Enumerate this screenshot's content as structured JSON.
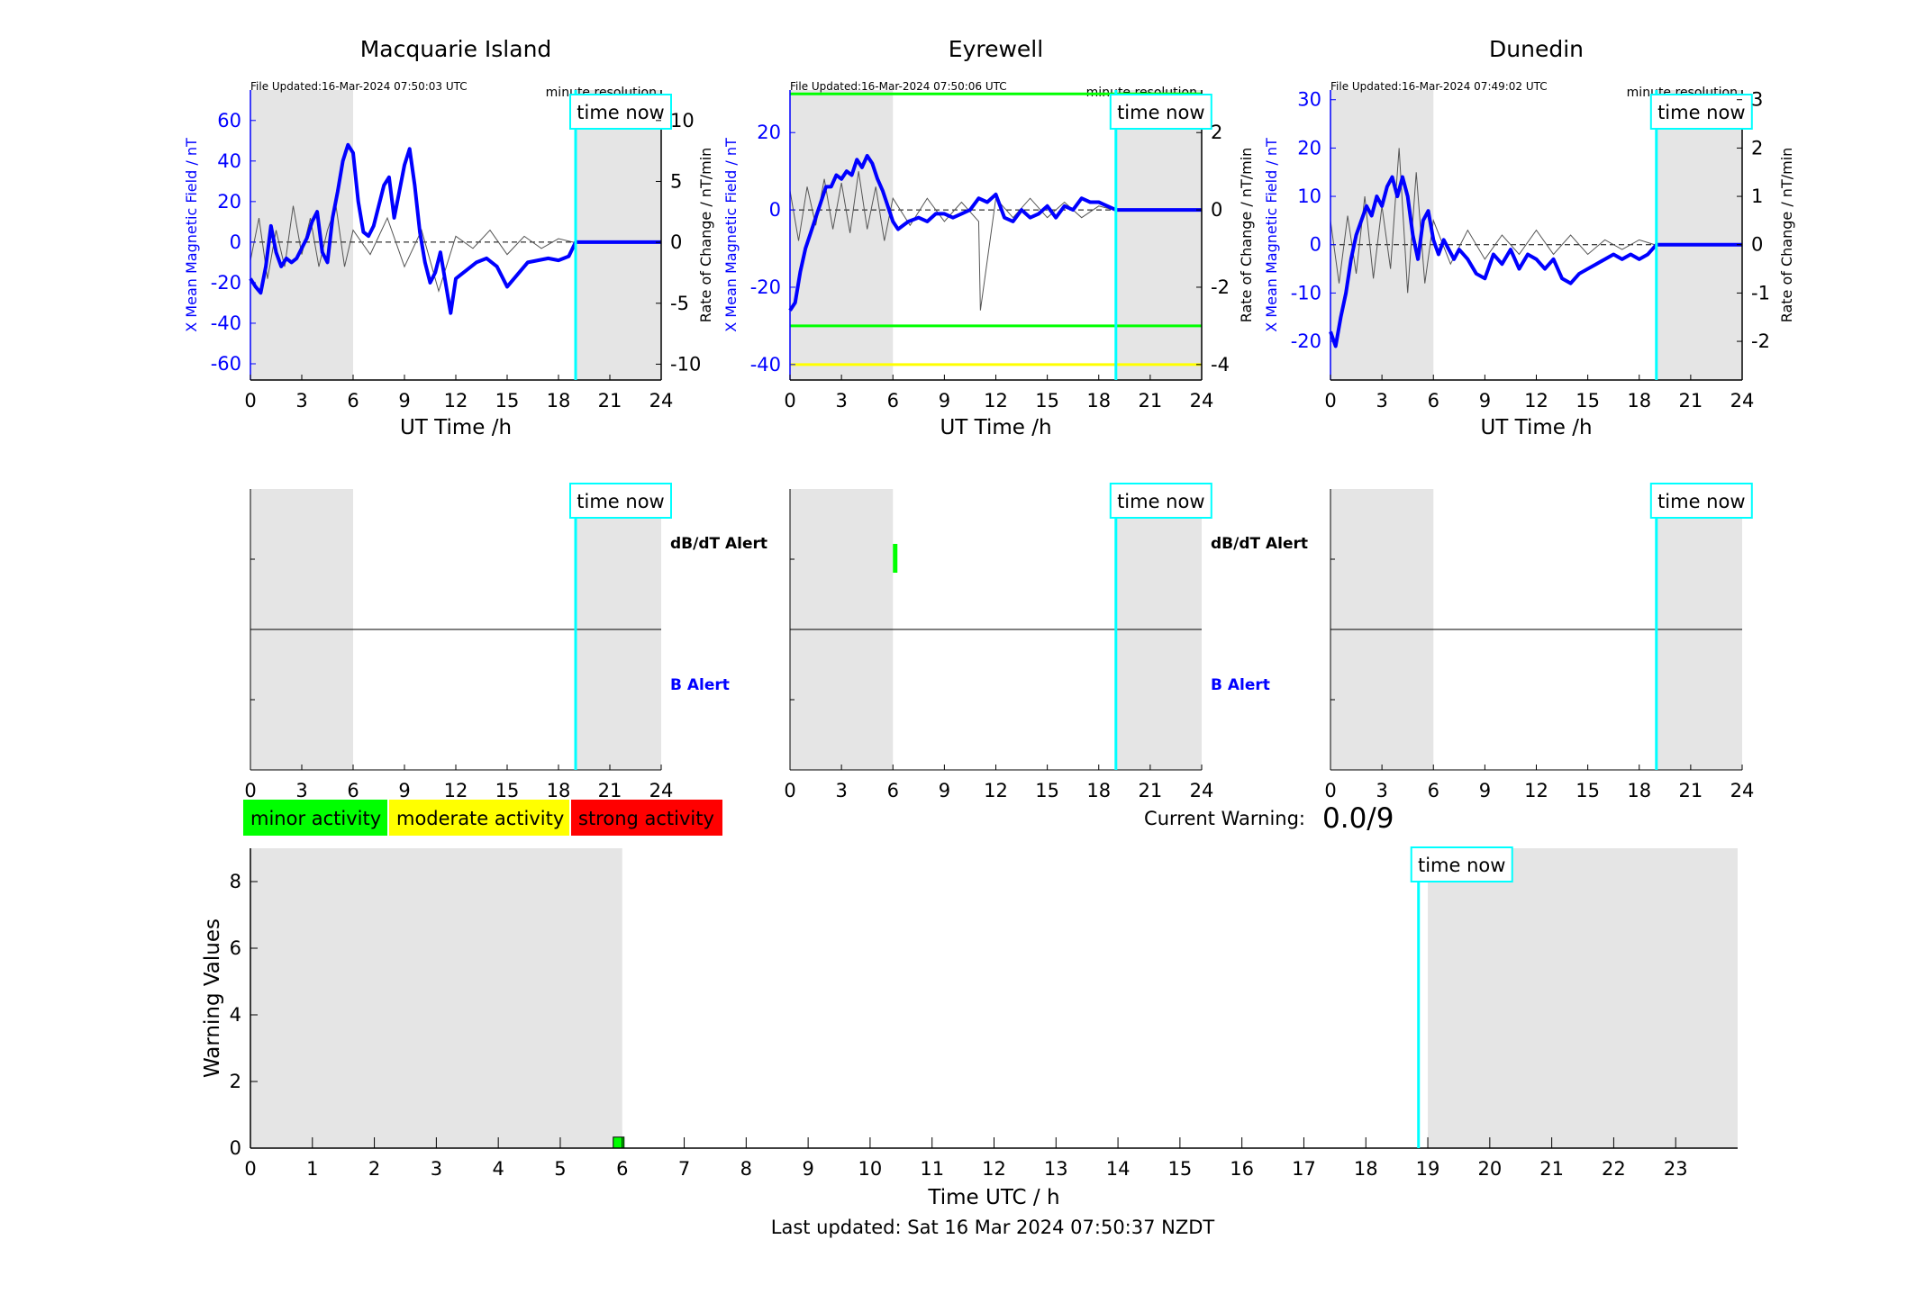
{
  "page": {
    "last_updated": "Last updated: Sat 16 Mar 2024 07:50:37 NZDT",
    "current_warning_label": "Current Warning:",
    "current_warning_value": "0.0/9",
    "legend": [
      {
        "label": "minor activity",
        "color": "#00ff00"
      },
      {
        "label": "moderate activity",
        "color": "#ffff00"
      },
      {
        "label": "strong activity",
        "color": "#ff0000"
      }
    ],
    "colors": {
      "field": "#0000ff",
      "now_line": "#00ffff",
      "night": "#e5e5e5",
      "dbdt": "#000000"
    }
  },
  "chart_data": [
    {
      "type": "line",
      "station": "Macquarie Island",
      "title": "Macquarie Island",
      "file_updated": "File Updated:16-Mar-2024 07:50:03 UTC",
      "resolution": "minute resolution",
      "time_now_label": "time now",
      "time_now_h": 19.0,
      "night_bands": [
        [
          0,
          6
        ],
        [
          19,
          24
        ]
      ],
      "xlabel": "UT Time /h",
      "xlim": [
        0,
        24
      ],
      "xticks": [
        "0",
        "3",
        "6",
        "9",
        "12",
        "15",
        "18",
        "21",
        "24"
      ],
      "ylabel_left": "X Mean Magnetic Field / nT",
      "ylim_left": [
        -68,
        75
      ],
      "yticks_left": [
        "-60",
        "-40",
        "-20",
        "0",
        "20",
        "40",
        "60"
      ],
      "ylabel_right": "Rate of Change / nT/min",
      "ylim_right": [
        -11.3,
        12.5
      ],
      "yticks_right": [
        "-10",
        "-5",
        "0",
        "5",
        "10"
      ],
      "series": [
        {
          "values_x": [
            0,
            0.3,
            0.6,
            0.9,
            1.2,
            1.5,
            1.8,
            2.1,
            2.4,
            2.7,
            3.0,
            3.3,
            3.6,
            3.9,
            4.2,
            4.5,
            4.8,
            5.1,
            5.4,
            5.7,
            6.0,
            6.3,
            6.6,
            6.9,
            7.2,
            7.5,
            7.8,
            8.1,
            8.4,
            8.7,
            9.0,
            9.3,
            9.6,
            9.9,
            10.2,
            10.5,
            10.8,
            11.1,
            11.4,
            11.7,
            12.0,
            12.6,
            13.2,
            13.8,
            14.4,
            15.0,
            15.6,
            16.2,
            16.8,
            17.4,
            18.0,
            18.6,
            19.0,
            24.0
          ],
          "values_y": [
            -18,
            -22,
            -25,
            -12,
            8,
            -5,
            -12,
            -8,
            -10,
            -8,
            -3,
            2,
            10,
            15,
            -5,
            -10,
            12,
            25,
            40,
            48,
            44,
            20,
            5,
            3,
            8,
            18,
            28,
            32,
            12,
            25,
            38,
            46,
            28,
            5,
            -10,
            -20,
            -15,
            -5,
            -20,
            -35,
            -18,
            -14,
            -10,
            -8,
            -12,
            -22,
            -16,
            -10,
            -9,
            -8,
            -9,
            -7,
            0,
            0
          ]
        },
        {
          "values_x": [
            0,
            0.5,
            1,
            1.5,
            2,
            2.5,
            3,
            3.5,
            4,
            4.5,
            5,
            5.5,
            6,
            7,
            8,
            9,
            10,
            11,
            12,
            13,
            14,
            15,
            16,
            17,
            18,
            18.9
          ],
          "values_y": [
            -1.5,
            2,
            -3,
            1,
            -2,
            3,
            -1,
            2,
            -2,
            1,
            3,
            -2,
            1,
            -1,
            2,
            -2,
            1,
            -4,
            0.5,
            -0.5,
            1,
            -1,
            0.5,
            -0.5,
            0.3,
            0
          ]
        }
      ],
      "alerts": {
        "dbdt_label": "dB/dT Alert",
        "b_label": "B Alert",
        "events": []
      }
    },
    {
      "type": "line",
      "station": "Eyrewell",
      "title": "Eyrewell",
      "file_updated": "File Updated:16-Mar-2024 07:50:06 UTC",
      "resolution": "minute resolution",
      "time_now_label": "time now",
      "time_now_h": 19.0,
      "night_bands": [
        [
          0,
          6
        ],
        [
          19,
          24
        ]
      ],
      "xlabel": "UT Time /h",
      "xlim": [
        0,
        24
      ],
      "xticks": [
        "0",
        "3",
        "6",
        "9",
        "12",
        "15",
        "18",
        "21",
        "24"
      ],
      "ylabel_left": "X Mean Magnetic Field / nT",
      "ylim_left": [
        -44,
        31
      ],
      "yticks_left": [
        "-40",
        "-20",
        "0",
        "20"
      ],
      "ylabel_right": "Rate of Change / nT/min",
      "ylim_right": [
        -4.4,
        3.1
      ],
      "yticks_right": [
        "-4",
        "-2",
        "0",
        "2"
      ],
      "threshold_lines": [
        {
          "y": 30,
          "color": "#00ff00"
        },
        {
          "y": -30,
          "color": "#00ff00"
        },
        {
          "y": -40,
          "color": "#ffff00"
        }
      ],
      "series": [
        {
          "values_x": [
            0,
            0.3,
            0.6,
            0.9,
            1.2,
            1.5,
            1.8,
            2.1,
            2.4,
            2.7,
            3.0,
            3.3,
            3.6,
            3.9,
            4.2,
            4.5,
            4.8,
            5.1,
            5.4,
            5.7,
            6.0,
            6.3,
            6.6,
            6.9,
            7.5,
            8.0,
            8.5,
            9.0,
            9.5,
            10.0,
            10.5,
            11.0,
            11.5,
            12.0,
            12.5,
            13.0,
            13.5,
            14.0,
            14.5,
            15.0,
            15.5,
            16.0,
            16.5,
            17.0,
            17.5,
            18.0,
            18.5,
            19.0,
            24.0
          ],
          "values_y": [
            -26,
            -24,
            -16,
            -10,
            -6,
            -2,
            2,
            6,
            6,
            9,
            8,
            10,
            9,
            13,
            11,
            14,
            12,
            8,
            5,
            1,
            -3,
            -5,
            -4,
            -3,
            -2,
            -3,
            -1,
            -1,
            -2,
            -1,
            0,
            3,
            2,
            4,
            -2,
            -3,
            0,
            -2,
            -1,
            1,
            -2,
            1,
            0,
            3,
            2,
            2,
            1,
            0,
            0
          ]
        },
        {
          "values_x": [
            0,
            0.5,
            1,
            1.5,
            2,
            2.5,
            3,
            3.5,
            4,
            4.5,
            5,
            5.5,
            6,
            7,
            8,
            9,
            10,
            11,
            11.1,
            12,
            13,
            14,
            15,
            16,
            17,
            18,
            18.9
          ],
          "values_y": [
            0.5,
            -0.8,
            0.6,
            -0.4,
            0.8,
            -0.5,
            0.7,
            -0.6,
            1,
            -0.5,
            0.6,
            -0.8,
            0.3,
            -0.4,
            0.3,
            -0.3,
            0.2,
            -0.3,
            -2.6,
            0.3,
            -0.2,
            0.3,
            -0.2,
            0.2,
            -0.2,
            0.1,
            0
          ]
        }
      ],
      "alerts": {
        "dbdt_label": "dB/dT Alert",
        "b_label": "B Alert",
        "events": [
          {
            "row": "dbdt",
            "start_h": 6.0,
            "end_h": 6.2,
            "color": "#00ff00"
          }
        ]
      }
    },
    {
      "type": "line",
      "station": "Dunedin",
      "title": "Dunedin",
      "file_updated": "File Updated:16-Mar-2024 07:49:02 UTC",
      "resolution": "minute resolution",
      "time_now_label": "time now",
      "time_now_h": 19.0,
      "night_bands": [
        [
          0,
          6
        ],
        [
          19,
          24
        ]
      ],
      "xlabel": "UT Time /h",
      "xlim": [
        0,
        24
      ],
      "xticks": [
        "0",
        "3",
        "6",
        "9",
        "12",
        "15",
        "18",
        "21",
        "24"
      ],
      "ylabel_left": "X Mean Magnetic Field / nT",
      "ylim_left": [
        -28,
        32
      ],
      "yticks_left": [
        "-20",
        "-10",
        "0",
        "10",
        "20",
        "30"
      ],
      "ylabel_right": "Rate of Change / nT/min",
      "ylim_right": [
        -2.8,
        3.2
      ],
      "yticks_right": [
        "-2",
        "-1",
        "0",
        "1",
        "2",
        "3"
      ],
      "series": [
        {
          "values_x": [
            0,
            0.3,
            0.6,
            0.9,
            1.2,
            1.5,
            1.8,
            2.1,
            2.4,
            2.7,
            3.0,
            3.3,
            3.6,
            3.9,
            4.2,
            4.5,
            4.8,
            5.1,
            5.4,
            5.7,
            6.0,
            6.3,
            6.6,
            6.9,
            7.2,
            7.5,
            8.0,
            8.5,
            9.0,
            9.5,
            10.0,
            10.5,
            11.0,
            11.5,
            12.0,
            12.5,
            13.0,
            13.5,
            14.0,
            14.5,
            15.0,
            15.5,
            16.0,
            16.5,
            17.0,
            17.5,
            18.0,
            18.5,
            19.0,
            24.0
          ],
          "values_y": [
            -18,
            -21,
            -15,
            -10,
            -3,
            2,
            5,
            8,
            6,
            10,
            8,
            12,
            14,
            10,
            14,
            10,
            2,
            -3,
            5,
            7,
            1,
            -2,
            1,
            -1,
            -3,
            -1,
            -3,
            -6,
            -7,
            -2,
            -4,
            -1,
            -5,
            -2,
            -3,
            -5,
            -3,
            -7,
            -8,
            -6,
            -5,
            -4,
            -3,
            -2,
            -3,
            -2,
            -3,
            -2,
            0,
            0
          ]
        },
        {
          "values_x": [
            0,
            0.5,
            1,
            1.5,
            2,
            2.5,
            3,
            3.5,
            4,
            4.5,
            5,
            5.5,
            6,
            7,
            8,
            9,
            10,
            11,
            12,
            13,
            14,
            15,
            16,
            17,
            18,
            18.9
          ],
          "values_y": [
            0.5,
            -0.8,
            0.6,
            -0.6,
            1,
            -0.7,
            0.8,
            -0.5,
            2,
            -1,
            1.5,
            -0.8,
            0.5,
            -0.4,
            0.3,
            -0.3,
            0.2,
            -0.2,
            0.3,
            -0.2,
            0.2,
            -0.2,
            0.1,
            -0.1,
            0.1,
            0
          ]
        }
      ],
      "alerts": {
        "dbdt_label": "",
        "b_label": "",
        "events": []
      }
    },
    {
      "type": "bar",
      "title": "",
      "time_now_label": "time now",
      "time_now_h": 18.85,
      "night_bands": [
        [
          0,
          6
        ],
        [
          19,
          24
        ]
      ],
      "xlabel": "Time UTC / h",
      "ylabel": "Warning Values",
      "xlim": [
        0,
        24
      ],
      "ylim": [
        0,
        9
      ],
      "xticks": [
        "0",
        "1",
        "2",
        "3",
        "4",
        "5",
        "6",
        "7",
        "8",
        "9",
        "10",
        "11",
        "12",
        "13",
        "14",
        "15",
        "16",
        "17",
        "18",
        "19",
        "20",
        "21",
        "22",
        "23"
      ],
      "yticks": [
        "0",
        "2",
        "4",
        "6",
        "8"
      ],
      "bars": [
        {
          "x": 6,
          "value": 0.33,
          "color": "#00ff00"
        }
      ]
    }
  ]
}
